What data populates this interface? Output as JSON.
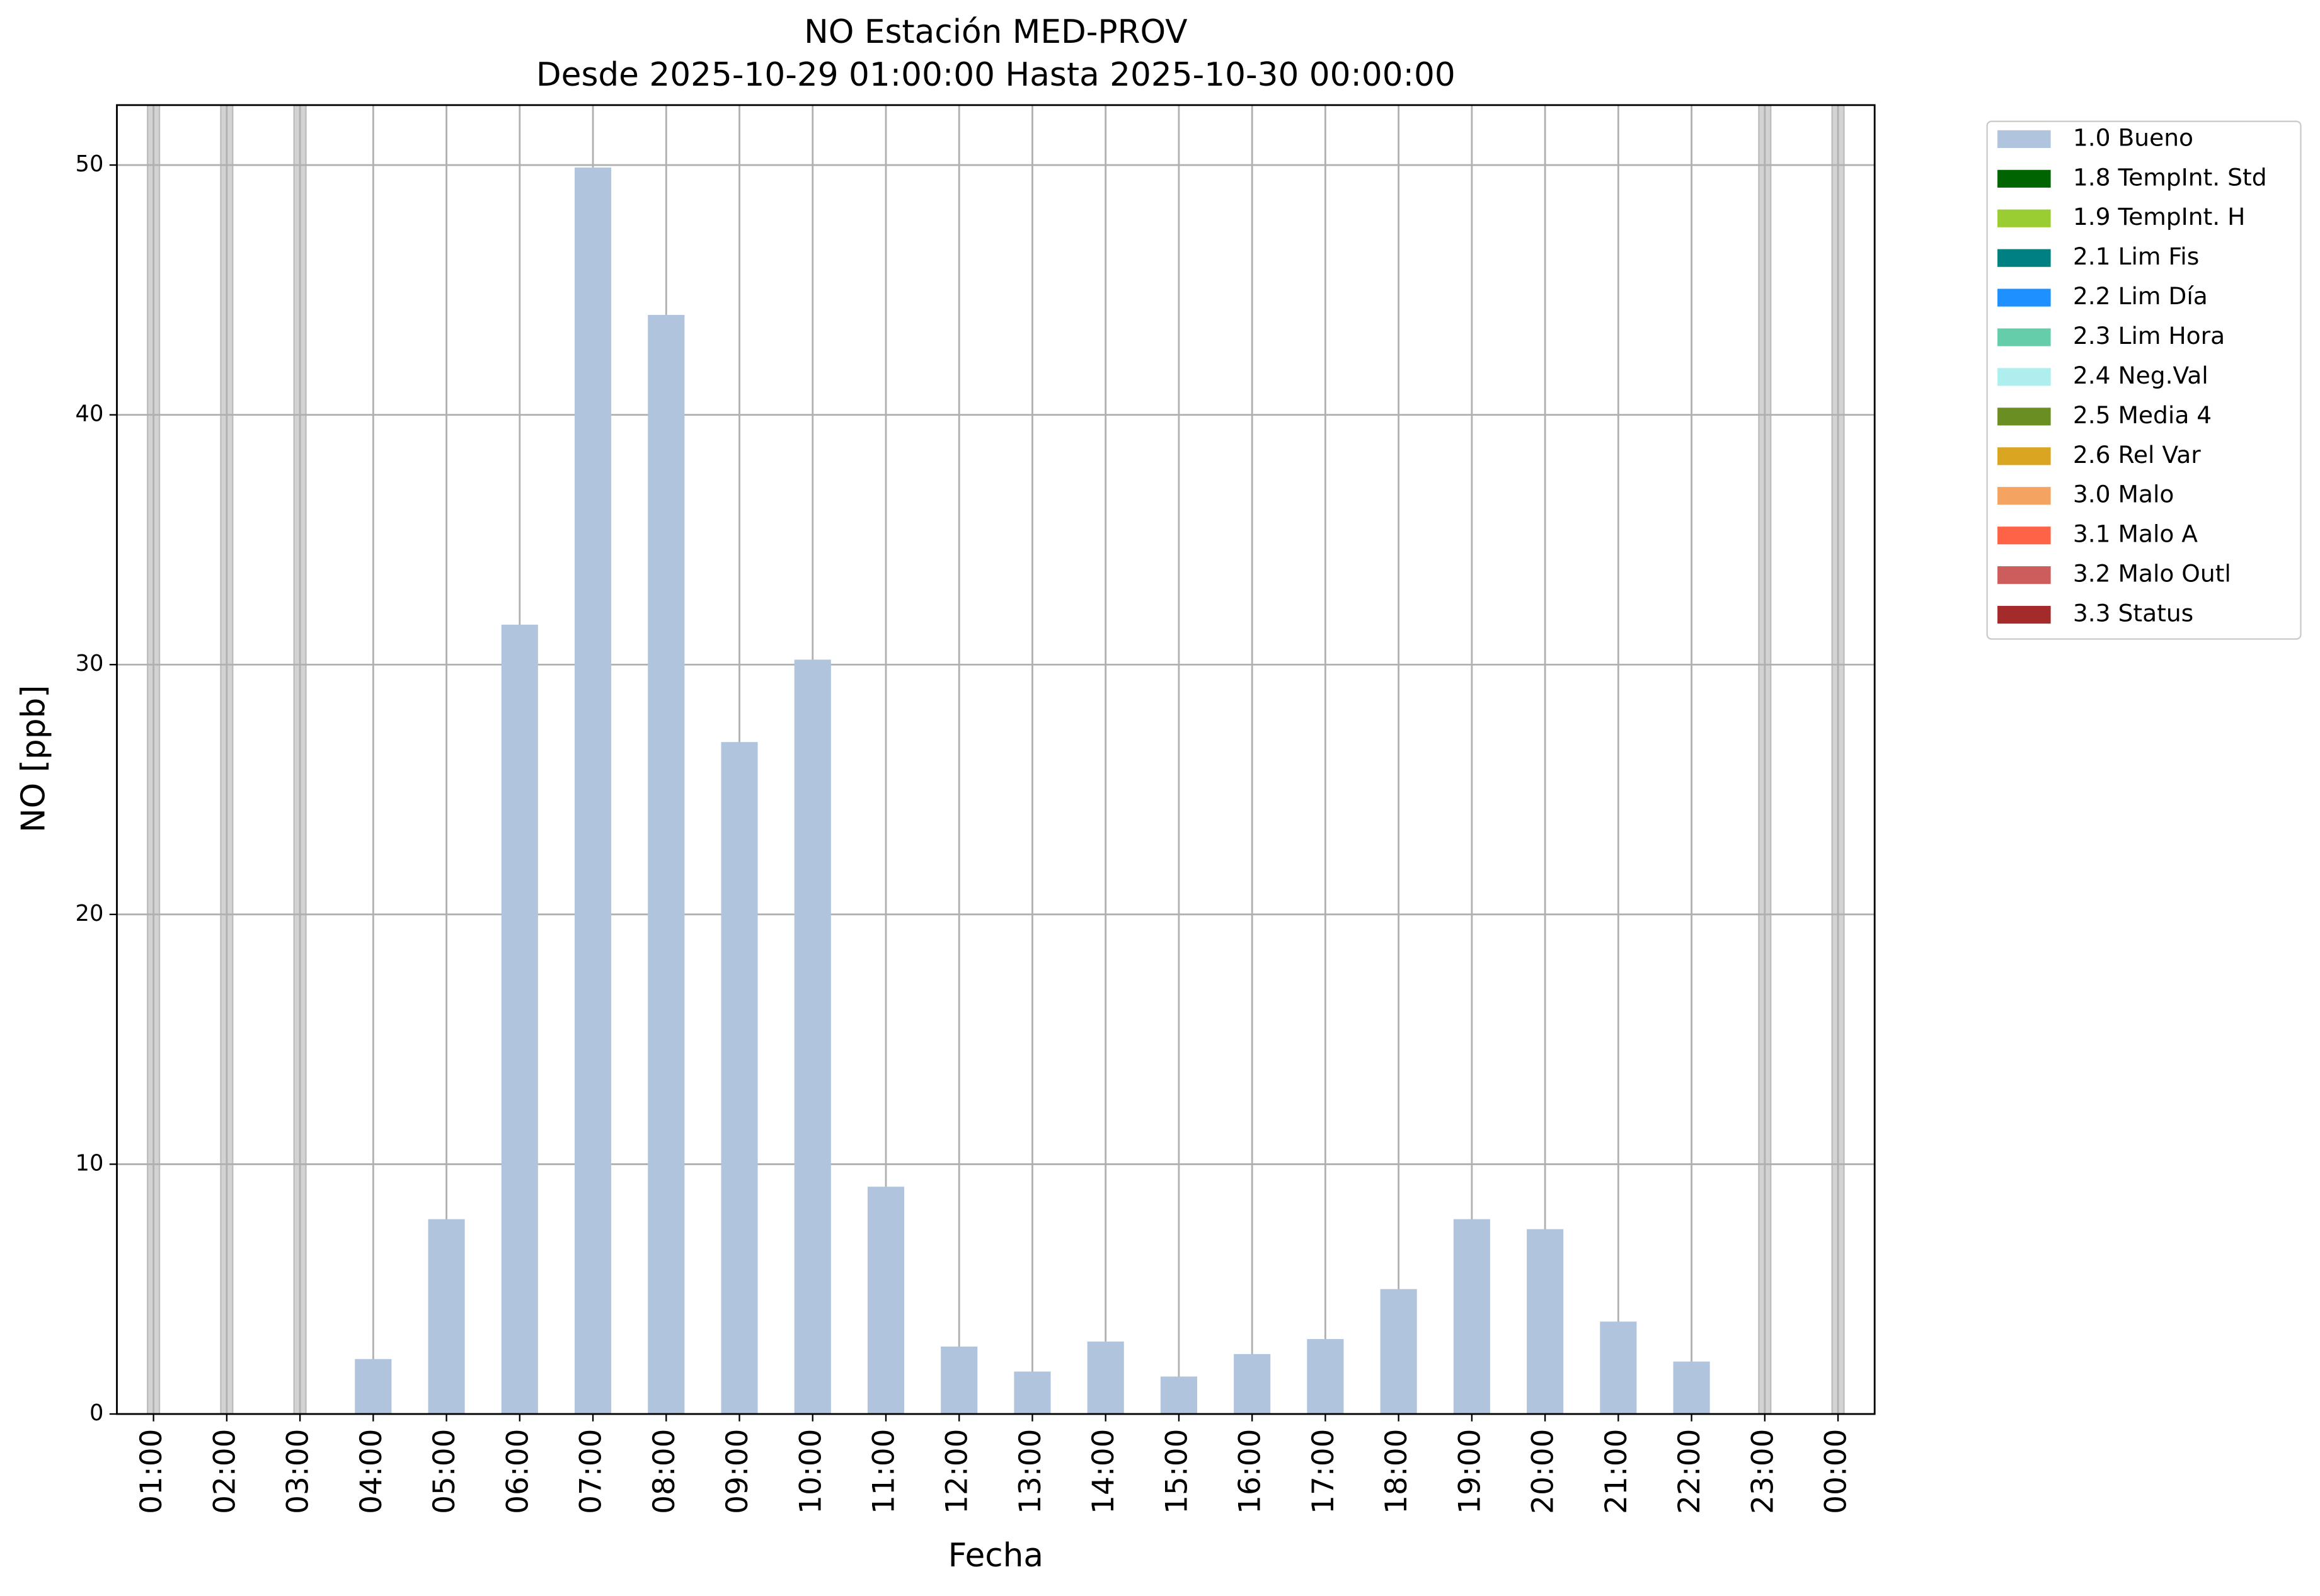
{
  "chart_data": {
    "type": "bar",
    "title": "NO Estación MED-PROV",
    "subtitle": "Desde 2025-10-29 01:00:00 Hasta 2025-10-30 00:00:00",
    "x_label": "Fecha",
    "y_label": "NO [ppb]",
    "categories": [
      "01:00",
      "02:00",
      "03:00",
      "04:00",
      "05:00",
      "06:00",
      "07:00",
      "08:00",
      "09:00",
      "10:00",
      "11:00",
      "12:00",
      "13:00",
      "14:00",
      "15:00",
      "16:00",
      "17:00",
      "18:00",
      "19:00",
      "20:00",
      "21:00",
      "22:00",
      "23:00",
      "00:00"
    ],
    "series": [
      {
        "name": "1.0 Bueno",
        "color": "#b0c4de",
        "values": [
          null,
          null,
          null,
          2.2,
          7.8,
          31.6,
          49.9,
          44.0,
          26.9,
          30.2,
          9.1,
          2.7,
          1.7,
          2.9,
          1.5,
          2.4,
          3.0,
          5.0,
          7.8,
          7.4,
          3.7,
          2.1,
          null,
          null
        ]
      },
      {
        "name": "1.8 TempInt. Std",
        "color": "#006400",
        "values": [
          null,
          null,
          null,
          null,
          null,
          null,
          null,
          null,
          null,
          null,
          null,
          null,
          null,
          null,
          null,
          null,
          null,
          null,
          null,
          null,
          null,
          null,
          null,
          null
        ]
      },
      {
        "name": "1.9 TempInt. H",
        "color": "#9acd32",
        "values": [
          null,
          null,
          null,
          null,
          null,
          null,
          null,
          null,
          null,
          null,
          null,
          null,
          null,
          null,
          null,
          null,
          null,
          null,
          null,
          null,
          null,
          null,
          null,
          null
        ]
      },
      {
        "name": "2.1 Lim Fis",
        "color": "#008080",
        "values": [
          null,
          null,
          null,
          null,
          null,
          null,
          null,
          null,
          null,
          null,
          null,
          null,
          null,
          null,
          null,
          null,
          null,
          null,
          null,
          null,
          null,
          null,
          null,
          null
        ]
      },
      {
        "name": "2.2 Lim Día",
        "color": "#1e90ff",
        "values": [
          null,
          null,
          null,
          null,
          null,
          null,
          null,
          null,
          null,
          null,
          null,
          null,
          null,
          null,
          null,
          null,
          null,
          null,
          null,
          null,
          null,
          null,
          null,
          null
        ]
      },
      {
        "name": "2.3 Lim Hora",
        "color": "#66cdaa",
        "values": [
          null,
          null,
          null,
          null,
          null,
          null,
          null,
          null,
          null,
          null,
          null,
          null,
          null,
          null,
          null,
          null,
          null,
          null,
          null,
          null,
          null,
          null,
          null,
          null
        ]
      },
      {
        "name": "2.4 Neg.Val",
        "color": "#afeeee",
        "values": [
          null,
          null,
          null,
          null,
          null,
          null,
          null,
          null,
          null,
          null,
          null,
          null,
          null,
          null,
          null,
          null,
          null,
          null,
          null,
          null,
          null,
          null,
          null,
          null
        ]
      },
      {
        "name": "2.5 Media 4",
        "color": "#6b8e23",
        "values": [
          null,
          null,
          null,
          null,
          null,
          null,
          null,
          null,
          null,
          null,
          null,
          null,
          null,
          null,
          null,
          null,
          null,
          null,
          null,
          null,
          null,
          null,
          null,
          null
        ]
      },
      {
        "name": "2.6 Rel Var",
        "color": "#daa520",
        "values": [
          null,
          null,
          null,
          null,
          null,
          null,
          null,
          null,
          null,
          null,
          null,
          null,
          null,
          null,
          null,
          null,
          null,
          null,
          null,
          null,
          null,
          null,
          null,
          null
        ]
      },
      {
        "name": "3.0 Malo",
        "color": "#f4a460",
        "values": [
          null,
          null,
          null,
          null,
          null,
          null,
          null,
          null,
          null,
          null,
          null,
          null,
          null,
          null,
          null,
          null,
          null,
          null,
          null,
          null,
          null,
          null,
          null,
          null
        ]
      },
      {
        "name": "3.1 Malo A",
        "color": "#ff6347",
        "values": [
          null,
          null,
          null,
          null,
          null,
          null,
          null,
          null,
          null,
          null,
          null,
          null,
          null,
          null,
          null,
          null,
          null,
          null,
          null,
          null,
          null,
          null,
          null,
          null
        ]
      },
      {
        "name": "3.2 Malo Outl",
        "color": "#cd5c5c",
        "values": [
          null,
          null,
          null,
          null,
          null,
          null,
          null,
          null,
          null,
          null,
          null,
          null,
          null,
          null,
          null,
          null,
          null,
          null,
          null,
          null,
          null,
          null,
          null,
          null
        ]
      },
      {
        "name": "3.3 Status",
        "color": "#a52a2a",
        "values": [
          null,
          null,
          null,
          null,
          null,
          null,
          null,
          null,
          null,
          null,
          null,
          null,
          null,
          null,
          null,
          null,
          null,
          null,
          null,
          null,
          null,
          null,
          null,
          null
        ]
      }
    ],
    "ylim": [
      0,
      52.4
    ],
    "yticks": [
      0,
      10,
      20,
      30,
      40,
      50
    ],
    "grid": true,
    "legend": "outside-upper-right"
  }
}
